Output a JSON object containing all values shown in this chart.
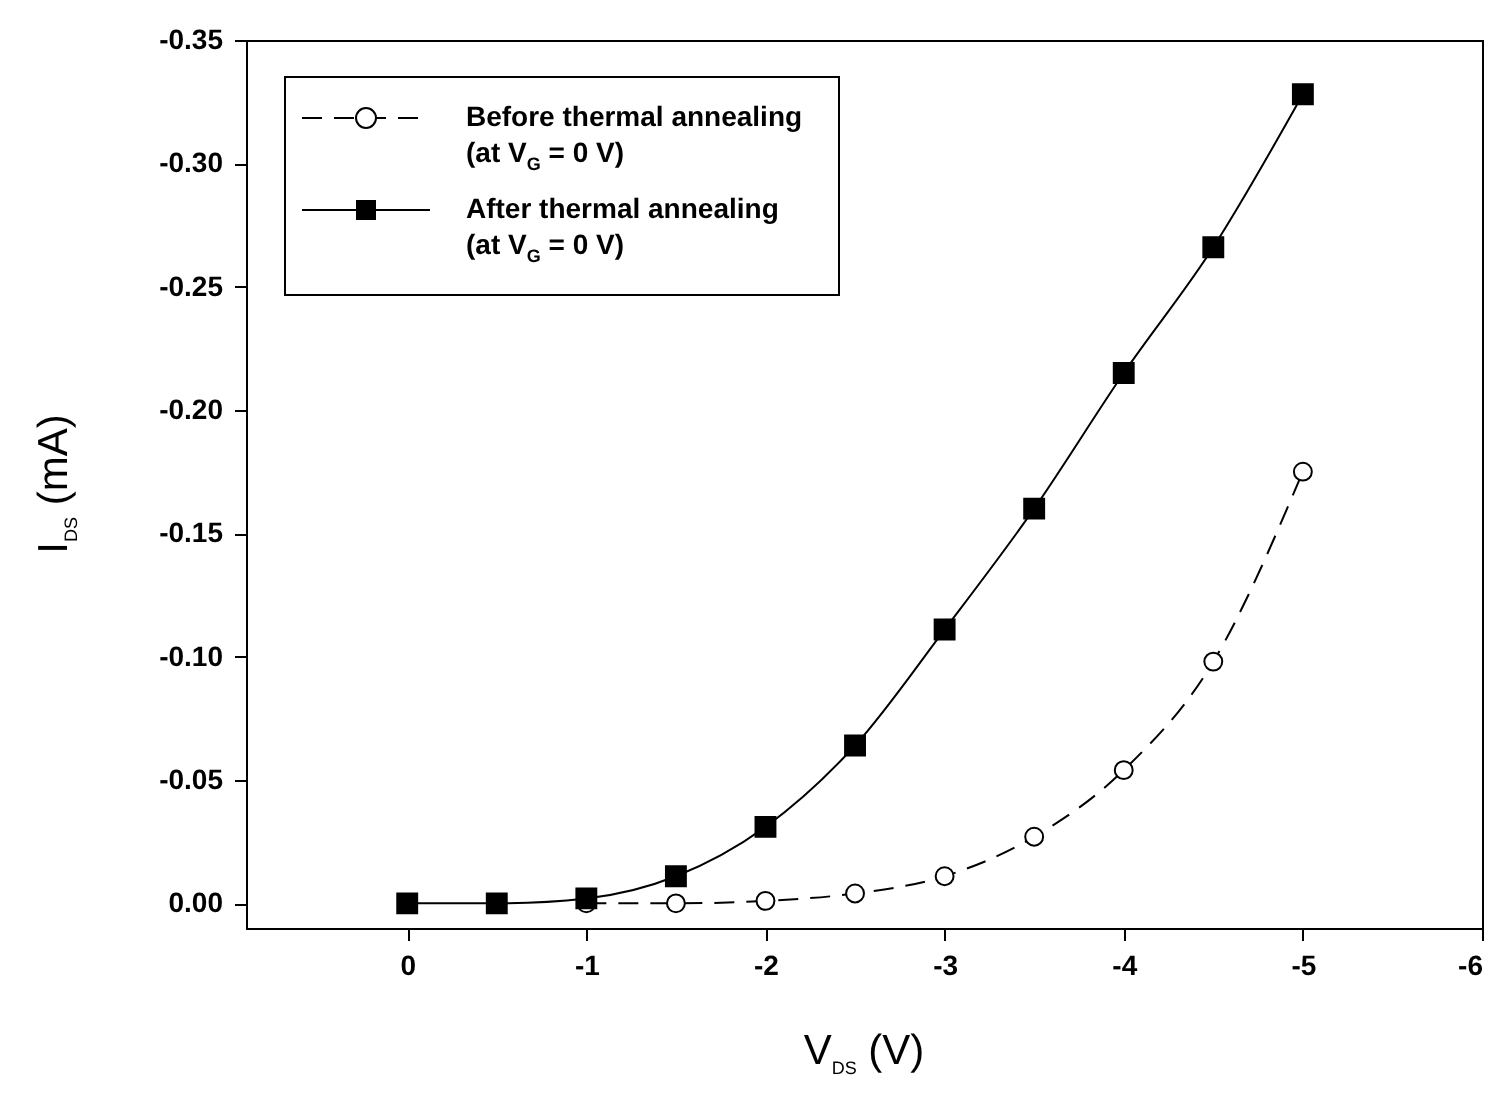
{
  "chart_data": {
    "type": "line",
    "xlabel": "V$_{DS}$ (V)",
    "ylabel": "I$_{DS}$ (mA)",
    "x": [
      0,
      -0.5,
      -1,
      -1.5,
      -2,
      -2.5,
      -3,
      -3.5,
      -4,
      -4.5,
      -5
    ],
    "series": [
      {
        "name": "Before thermal annealing (at V$_{G}$ = 0 V)",
        "color": "#000000",
        "marker": "circle",
        "line_style": "dashed",
        "x": [
          -1,
          -1.5,
          -2,
          -2.5,
          -3,
          -3.5,
          -4,
          -4.5,
          -5
        ],
        "values": [
          0,
          0,
          -0.001,
          -0.004,
          -0.011,
          -0.027,
          -0.054,
          -0.098,
          -0.175
        ]
      },
      {
        "name": "After thermal annealing (at V$_{G}$ = 0 V)",
        "color": "#000000",
        "marker": "square",
        "line_style": "solid",
        "values": [
          0,
          0,
          -0.002,
          -0.011,
          -0.031,
          -0.064,
          -0.111,
          -0.16,
          -0.215,
          -0.266,
          -0.328
        ]
      }
    ],
    "xlim": [
      0.9,
      -6
    ],
    "xticks": [
      0,
      -1,
      -2,
      -3,
      -4,
      -5,
      -6
    ],
    "ylim": [
      0.01,
      -0.35
    ],
    "yticks": [
      {
        "value": 0,
        "label": "0.00"
      },
      {
        "value": -0.05,
        "label": "-0.05"
      },
      {
        "value": -0.1,
        "label": "-0.10"
      },
      {
        "value": -0.15,
        "label": "-0.15"
      },
      {
        "value": -0.2,
        "label": "-0.20"
      },
      {
        "value": -0.25,
        "label": "-0.25"
      },
      {
        "value": -0.3,
        "label": "-0.30"
      },
      {
        "value": -0.35,
        "label": "-0.35"
      }
    ],
    "legend": "top left",
    "grid": false
  }
}
